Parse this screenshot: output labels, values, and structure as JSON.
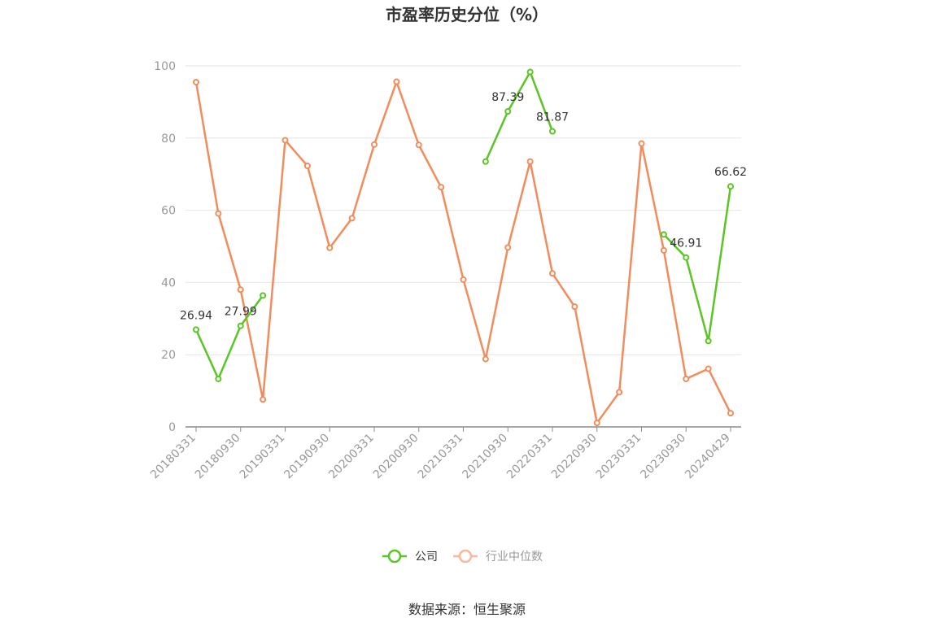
{
  "chart_data": {
    "type": "line",
    "title": "市盈率历史分位（%）",
    "ylim": [
      0,
      100
    ],
    "yticks": [
      0,
      20,
      40,
      60,
      80,
      100
    ],
    "x": [
      "20180331",
      "20180630",
      "20180930",
      "20181231",
      "20190331",
      "20190630",
      "20190930",
      "20191231",
      "20200331",
      "20200630",
      "20200930",
      "20201231",
      "20210331",
      "20210630",
      "20210930",
      "20211231",
      "20220331",
      "20220630",
      "20220930",
      "20221231",
      "20230331",
      "20230630",
      "20230930",
      "20231231",
      "20240429"
    ],
    "xtick_labels": [
      "20180331",
      "20180930",
      "20190331",
      "20190930",
      "20200331",
      "20200930",
      "20210331",
      "20210930",
      "20220331",
      "20220930",
      "20230331",
      "20230930",
      "20240429"
    ],
    "series": [
      {
        "name": "公司",
        "color": "#5ac524",
        "values": [
          26.94,
          13.3,
          27.99,
          36.4,
          null,
          null,
          null,
          null,
          null,
          null,
          null,
          null,
          null,
          73.5,
          87.39,
          98.3,
          81.87,
          null,
          null,
          null,
          null,
          53.3,
          46.91,
          23.8,
          66.62
        ]
      },
      {
        "name": "行业中位数",
        "color": "#f28c5c",
        "values": [
          95.5,
          59.1,
          38.0,
          7.6,
          79.4,
          72.3,
          49.6,
          57.8,
          78.2,
          95.6,
          78.1,
          66.4,
          40.8,
          18.8,
          49.7,
          73.5,
          42.5,
          33.3,
          1.1,
          9.6,
          78.5,
          48.9,
          13.3,
          16.1,
          3.8
        ]
      }
    ],
    "data_labels": [
      {
        "series": 0,
        "index": 0,
        "text": "26.94"
      },
      {
        "series": 0,
        "index": 2,
        "text": "27.99"
      },
      {
        "series": 0,
        "index": 14,
        "text": "87.39"
      },
      {
        "series": 0,
        "index": 16,
        "text": "81.87"
      },
      {
        "series": 0,
        "index": 22,
        "text": "46.91"
      },
      {
        "series": 0,
        "index": 24,
        "text": "66.62"
      }
    ],
    "legend_position": "bottom-center",
    "grid": true
  },
  "source": "数据来源：恒生聚源"
}
